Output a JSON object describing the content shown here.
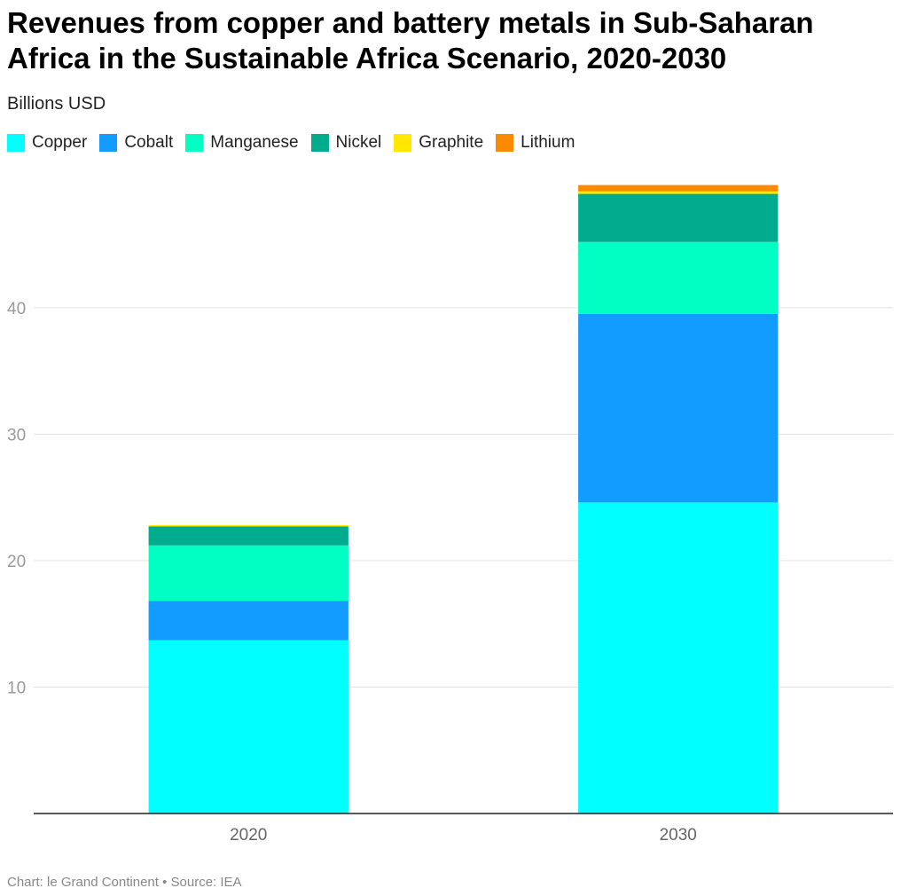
{
  "title": "Revenues from copper and battery metals in Sub-Saharan Africa in the Sustainable Africa Scenario, 2020-2030",
  "subtitle": "Billions USD",
  "footer": "Chart: le Grand Continent • Source: IEA",
  "chart_data": {
    "type": "bar",
    "stacked": true,
    "categories": [
      "2020",
      "2030"
    ],
    "series": [
      {
        "name": "Copper",
        "color": "#00ffff",
        "values": [
          13.7,
          24.6
        ]
      },
      {
        "name": "Cobalt",
        "color": "#129cff",
        "values": [
          3.1,
          14.9
        ]
      },
      {
        "name": "Manganese",
        "color": "#00ffc3",
        "values": [
          4.4,
          5.7
        ]
      },
      {
        "name": "Nickel",
        "color": "#00ab8e",
        "values": [
          1.5,
          3.8
        ]
      },
      {
        "name": "Graphite",
        "color": "#ffe700",
        "values": [
          0.1,
          0.2
        ]
      },
      {
        "name": "Lithium",
        "color": "#fc8a00",
        "values": [
          0.0,
          0.5
        ]
      }
    ],
    "yticks": [
      10,
      20,
      30,
      40
    ],
    "ylim": [
      0,
      49.6
    ],
    "grid": true,
    "legend": "top"
  }
}
